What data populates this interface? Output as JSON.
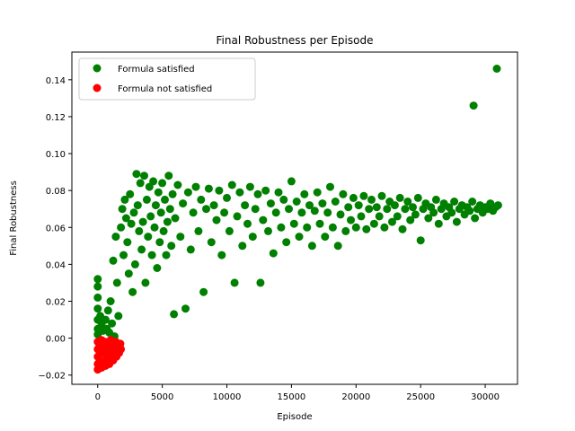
{
  "chart_data": {
    "type": "scatter",
    "title": "Final Robustness per Episode",
    "xlabel": "Episode",
    "ylabel": "Final Robustness",
    "xlim": [
      -2000,
      32500
    ],
    "ylim": [
      -0.025,
      0.155
    ],
    "x_ticks": [
      0,
      5000,
      10000,
      15000,
      20000,
      25000,
      30000
    ],
    "y_ticks": [
      -0.02,
      0.0,
      0.02,
      0.04,
      0.06,
      0.08,
      0.1,
      0.12,
      0.14
    ],
    "x_tick_labels": [
      "0",
      "5000",
      "10000",
      "15000",
      "20000",
      "25000",
      "30000"
    ],
    "y_tick_labels": [
      "−0.02",
      "0.00",
      "0.02",
      "0.04",
      "0.06",
      "0.08",
      "0.10",
      "0.12",
      "0.14"
    ],
    "grid": false,
    "legend_position": "top-left",
    "series": [
      {
        "name": "Formula satisfied",
        "color": "#008000",
        "points": [
          [
            0,
            0.032
          ],
          [
            0,
            0.028
          ],
          [
            0,
            0.022
          ],
          [
            0,
            0.016
          ],
          [
            0,
            0.01
          ],
          [
            0,
            0.005
          ],
          [
            0,
            0.002
          ],
          [
            200,
            0.012
          ],
          [
            300,
            0.008
          ],
          [
            400,
            0.004
          ],
          [
            600,
            0.01
          ],
          [
            700,
            0.005
          ],
          [
            800,
            0.015
          ],
          [
            900,
            0.003
          ],
          [
            1000,
            0.02
          ],
          [
            1100,
            0.008
          ],
          [
            1200,
            0.042
          ],
          [
            1300,
            0.001
          ],
          [
            1400,
            0.055
          ],
          [
            1500,
            0.03
          ],
          [
            1600,
            0.012
          ],
          [
            1800,
            0.06
          ],
          [
            1900,
            0.07
          ],
          [
            2000,
            0.045
          ],
          [
            2100,
            0.075
          ],
          [
            2200,
            0.065
          ],
          [
            2300,
            0.052
          ],
          [
            2400,
            0.035
          ],
          [
            2500,
            0.078
          ],
          [
            2600,
            0.062
          ],
          [
            2700,
            0.025
          ],
          [
            2800,
            0.068
          ],
          [
            2900,
            0.04
          ],
          [
            3000,
            0.089
          ],
          [
            3100,
            0.072
          ],
          [
            3200,
            0.058
          ],
          [
            3300,
            0.084
          ],
          [
            3400,
            0.048
          ],
          [
            3500,
            0.063
          ],
          [
            3600,
            0.088
          ],
          [
            3700,
            0.03
          ],
          [
            3800,
            0.075
          ],
          [
            3900,
            0.055
          ],
          [
            4000,
            0.082
          ],
          [
            4100,
            0.066
          ],
          [
            4200,
            0.045
          ],
          [
            4300,
            0.085
          ],
          [
            4400,
            0.06
          ],
          [
            4500,
            0.072
          ],
          [
            4600,
            0.038
          ],
          [
            4700,
            0.079
          ],
          [
            4800,
            0.052
          ],
          [
            4900,
            0.068
          ],
          [
            5000,
            0.084
          ],
          [
            5100,
            0.058
          ],
          [
            5200,
            0.075
          ],
          [
            5300,
            0.045
          ],
          [
            5400,
            0.063
          ],
          [
            5500,
            0.088
          ],
          [
            5600,
            0.07
          ],
          [
            5700,
            0.05
          ],
          [
            5800,
            0.078
          ],
          [
            5900,
            0.013
          ],
          [
            6000,
            0.065
          ],
          [
            6200,
            0.083
          ],
          [
            6400,
            0.055
          ],
          [
            6600,
            0.073
          ],
          [
            6800,
            0.016
          ],
          [
            7000,
            0.079
          ],
          [
            7200,
            0.048
          ],
          [
            7400,
            0.068
          ],
          [
            7600,
            0.082
          ],
          [
            7800,
            0.058
          ],
          [
            8000,
            0.075
          ],
          [
            8200,
            0.025
          ],
          [
            8400,
            0.07
          ],
          [
            8600,
            0.081
          ],
          [
            8800,
            0.052
          ],
          [
            9000,
            0.072
          ],
          [
            9200,
            0.064
          ],
          [
            9400,
            0.08
          ],
          [
            9600,
            0.045
          ],
          [
            9800,
            0.068
          ],
          [
            10000,
            0.076
          ],
          [
            10200,
            0.058
          ],
          [
            10400,
            0.083
          ],
          [
            10600,
            0.03
          ],
          [
            10800,
            0.066
          ],
          [
            11000,
            0.079
          ],
          [
            11200,
            0.05
          ],
          [
            11400,
            0.072
          ],
          [
            11600,
            0.062
          ],
          [
            11800,
            0.082
          ],
          [
            12000,
            0.055
          ],
          [
            12200,
            0.07
          ],
          [
            12400,
            0.078
          ],
          [
            12600,
            0.03
          ],
          [
            12800,
            0.064
          ],
          [
            13000,
            0.08
          ],
          [
            13200,
            0.058
          ],
          [
            13400,
            0.073
          ],
          [
            13600,
            0.046
          ],
          [
            13800,
            0.068
          ],
          [
            14000,
            0.079
          ],
          [
            14200,
            0.06
          ],
          [
            14400,
            0.075
          ],
          [
            14600,
            0.052
          ],
          [
            14800,
            0.07
          ],
          [
            15000,
            0.085
          ],
          [
            15200,
            0.062
          ],
          [
            15400,
            0.074
          ],
          [
            15600,
            0.055
          ],
          [
            15800,
            0.068
          ],
          [
            16000,
            0.078
          ],
          [
            16200,
            0.06
          ],
          [
            16400,
            0.072
          ],
          [
            16600,
            0.05
          ],
          [
            16800,
            0.069
          ],
          [
            17000,
            0.079
          ],
          [
            17200,
            0.062
          ],
          [
            17400,
            0.073
          ],
          [
            17600,
            0.055
          ],
          [
            17800,
            0.068
          ],
          [
            18000,
            0.082
          ],
          [
            18200,
            0.06
          ],
          [
            18400,
            0.074
          ],
          [
            18600,
            0.05
          ],
          [
            18800,
            0.067
          ],
          [
            19000,
            0.078
          ],
          [
            19200,
            0.058
          ],
          [
            19400,
            0.071
          ],
          [
            19600,
            0.064
          ],
          [
            19800,
            0.076
          ],
          [
            20000,
            0.06
          ],
          [
            20200,
            0.072
          ],
          [
            20400,
            0.066
          ],
          [
            20600,
            0.077
          ],
          [
            20800,
            0.059
          ],
          [
            21000,
            0.07
          ],
          [
            21200,
            0.075
          ],
          [
            21400,
            0.062
          ],
          [
            21600,
            0.071
          ],
          [
            21800,
            0.066
          ],
          [
            22000,
            0.077
          ],
          [
            22200,
            0.06
          ],
          [
            22400,
            0.07
          ],
          [
            22600,
            0.074
          ],
          [
            22800,
            0.063
          ],
          [
            23000,
            0.072
          ],
          [
            23200,
            0.066
          ],
          [
            23400,
            0.076
          ],
          [
            23600,
            0.059
          ],
          [
            23800,
            0.07
          ],
          [
            24000,
            0.074
          ],
          [
            24200,
            0.064
          ],
          [
            24400,
            0.071
          ],
          [
            24600,
            0.067
          ],
          [
            24800,
            0.076
          ],
          [
            25000,
            0.053
          ],
          [
            25200,
            0.07
          ],
          [
            25400,
            0.073
          ],
          [
            25600,
            0.065
          ],
          [
            25800,
            0.071
          ],
          [
            26000,
            0.068
          ],
          [
            26200,
            0.075
          ],
          [
            26400,
            0.062
          ],
          [
            26600,
            0.07
          ],
          [
            26800,
            0.073
          ],
          [
            27000,
            0.066
          ],
          [
            27200,
            0.071
          ],
          [
            27400,
            0.068
          ],
          [
            27600,
            0.074
          ],
          [
            27800,
            0.063
          ],
          [
            28000,
            0.07
          ],
          [
            28200,
            0.072
          ],
          [
            28400,
            0.067
          ],
          [
            28600,
            0.071
          ],
          [
            28800,
            0.069
          ],
          [
            29000,
            0.074
          ],
          [
            29200,
            0.065
          ],
          [
            29400,
            0.07
          ],
          [
            29600,
            0.072
          ],
          [
            29800,
            0.068
          ],
          [
            30000,
            0.071
          ],
          [
            30200,
            0.07
          ],
          [
            30400,
            0.073
          ],
          [
            30600,
            0.069
          ],
          [
            30800,
            0.071
          ],
          [
            31000,
            0.072
          ],
          [
            29100,
            0.126
          ],
          [
            30900,
            0.146
          ]
        ]
      },
      {
        "name": "Formula not satisfied",
        "color": "#ff0000",
        "points": [
          [
            0,
            -0.002
          ],
          [
            0,
            -0.006
          ],
          [
            0,
            -0.01
          ],
          [
            0,
            -0.014
          ],
          [
            0,
            -0.017
          ],
          [
            150,
            -0.004
          ],
          [
            150,
            -0.012
          ],
          [
            300,
            -0.001
          ],
          [
            300,
            -0.008
          ],
          [
            300,
            -0.016
          ],
          [
            450,
            -0.005
          ],
          [
            450,
            -0.013
          ],
          [
            600,
            -0.002
          ],
          [
            600,
            -0.009
          ],
          [
            600,
            -0.015
          ],
          [
            750,
            -0.003
          ],
          [
            750,
            -0.011
          ],
          [
            900,
            -0.006
          ],
          [
            900,
            -0.014
          ],
          [
            1000,
            -0.001
          ],
          [
            1050,
            -0.009
          ],
          [
            1150,
            -0.004
          ],
          [
            1200,
            -0.012
          ],
          [
            1300,
            -0.007
          ],
          [
            1400,
            -0.002
          ],
          [
            1450,
            -0.01
          ],
          [
            1550,
            -0.005
          ],
          [
            1650,
            -0.008
          ],
          [
            1750,
            -0.003
          ],
          [
            1800,
            -0.006
          ]
        ]
      }
    ]
  }
}
